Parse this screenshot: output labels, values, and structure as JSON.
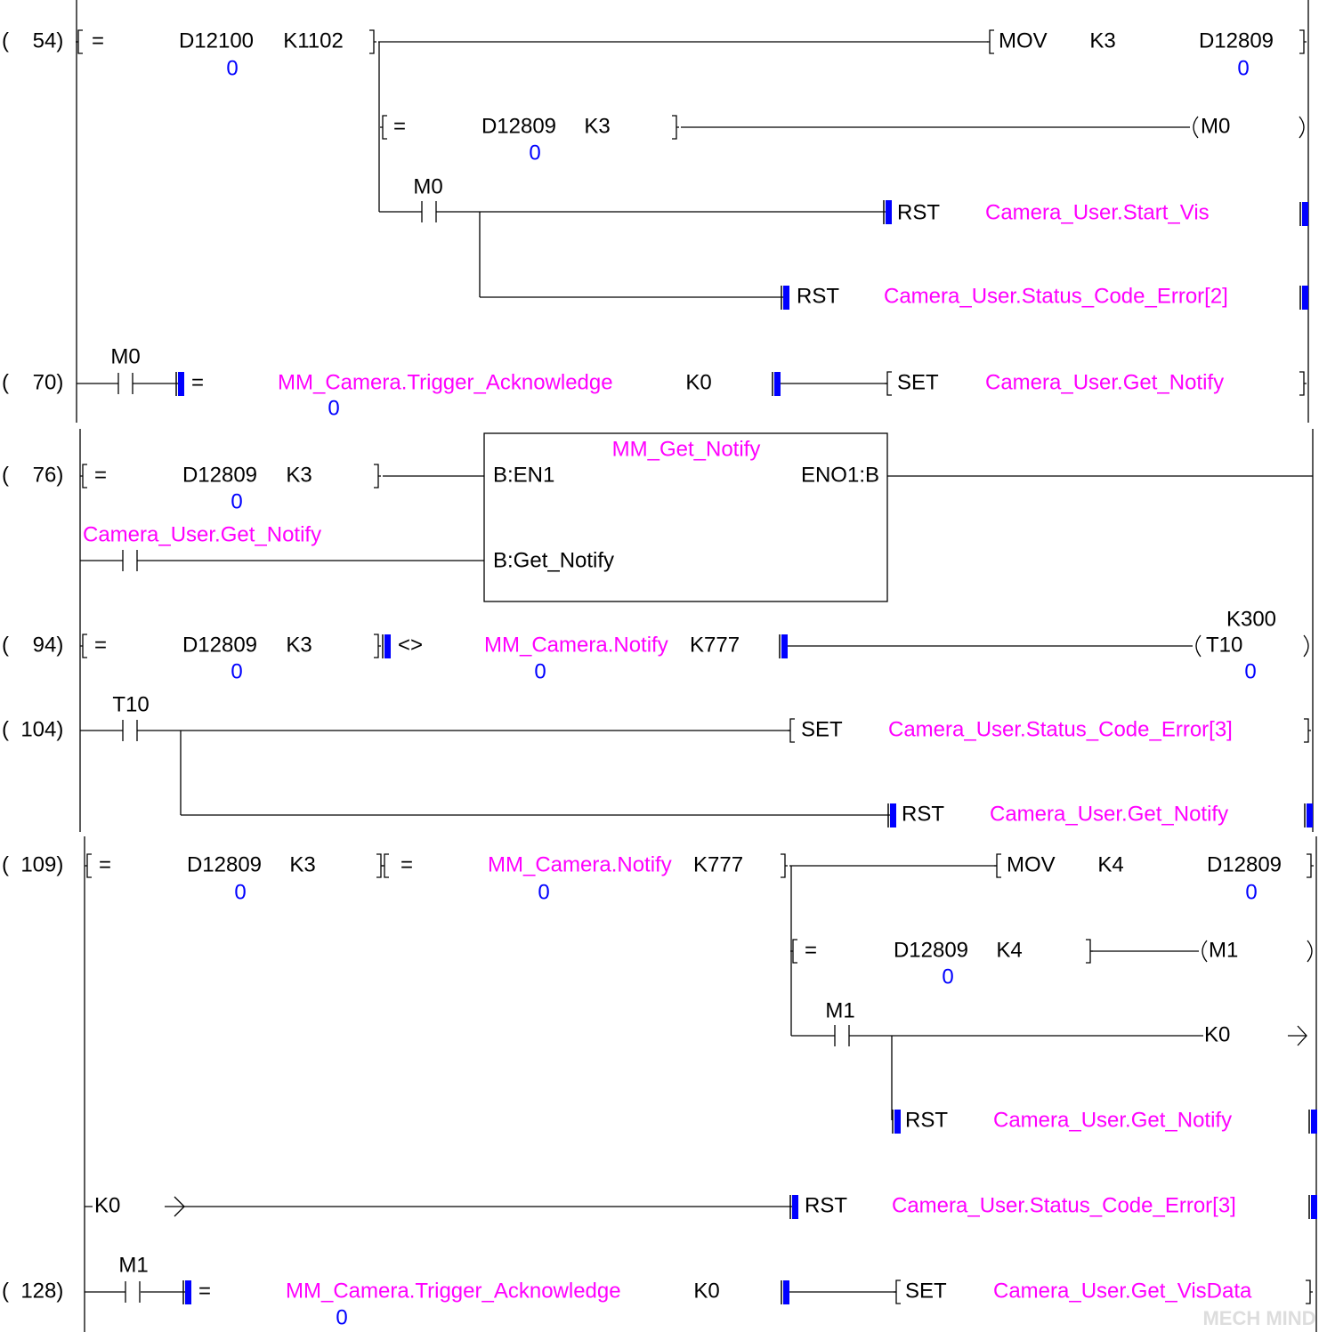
{
  "rungs": [
    {
      "step": "(    54)",
      "texts": [
        "=",
        "D12100",
        "K1102",
        "0",
        "MOV",
        "K3",
        "D12809",
        "0",
        "=",
        "D12809",
        "K3",
        "0",
        "M0",
        "M0",
        "RST",
        "Camera_User.Start_Vis",
        "RST",
        "Camera_User.Status_Code_Error[2]"
      ]
    },
    {
      "step": "(    70)",
      "texts": [
        "M0",
        "=",
        "MM_Camera.Trigger_Acknowledge",
        "K0",
        "0",
        "SET",
        "Camera_User.Get_Notify"
      ]
    },
    {
      "step": "(    76)",
      "texts": [
        "=",
        "D12809",
        "K3",
        "0",
        "MM_Get_Notify",
        "B:EN1",
        "ENO1:B",
        "Camera_User.Get_Notify",
        "B:Get_Notify"
      ]
    },
    {
      "step": "(    94)",
      "texts": [
        "=",
        "D12809",
        "K3",
        "0",
        "<>",
        "MM_Camera.Notify",
        "K777",
        "0",
        "K300",
        "T10",
        "0"
      ]
    },
    {
      "step": "(  104)",
      "texts": [
        "T10",
        "SET",
        "Camera_User.Status_Code_Error[3]",
        "RST",
        "Camera_User.Get_Notify"
      ]
    },
    {
      "step": "(  109)",
      "texts": [
        "=",
        "D12809",
        "K3",
        "0",
        "=",
        "MM_Camera.Notify",
        "K777",
        "0",
        "MOV",
        "K4",
        "D12809",
        "0",
        "=",
        "D12809",
        "K4",
        "0",
        "M1",
        "M1",
        "K0",
        "RST",
        "Camera_User.Get_Notify",
        "K0",
        "RST",
        "Camera_User.Status_Code_Error[3]"
      ]
    },
    {
      "step": "(  128)",
      "texts": [
        "M1",
        "=",
        "MM_Camera.Trigger_Acknowledge",
        "K0",
        "0",
        "SET",
        "Camera_User.Get_VisData"
      ]
    }
  ],
  "watermark": "MECH MIND"
}
